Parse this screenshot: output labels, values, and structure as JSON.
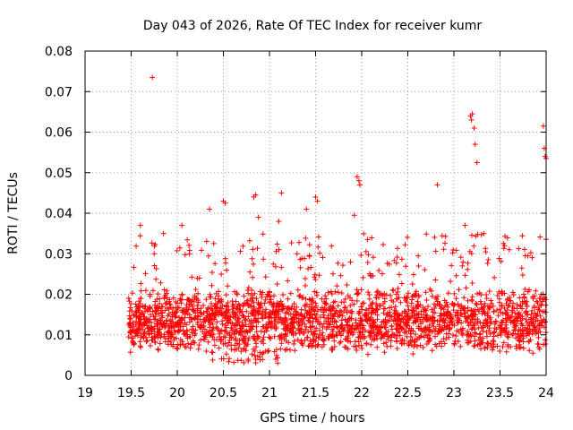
{
  "chart_data": {
    "type": "scatter",
    "title": "Day 043 of 2026, Rate Of TEC Index for receiver kumr",
    "xlabel": "GPS time / hours",
    "ylabel": "ROTI / TECUs",
    "xlim": [
      19,
      24
    ],
    "ylim": [
      0,
      0.08
    ],
    "x_ticks": [
      19,
      19.5,
      20,
      20.5,
      21,
      21.5,
      22,
      22.5,
      23,
      23.5,
      24
    ],
    "x_tick_labels": [
      "19",
      "19.5",
      "20",
      "20.5",
      "21",
      "21.5",
      "22",
      "22.5",
      "23",
      "23.5",
      "24"
    ],
    "y_ticks": [
      0,
      0.01,
      0.02,
      0.03,
      0.04,
      0.05,
      0.06,
      0.07,
      0.08
    ],
    "y_tick_labels": [
      "0",
      "0.01",
      "0.02",
      "0.03",
      "0.04",
      "0.05",
      "0.06",
      "0.07",
      "0.08"
    ],
    "grid": true,
    "marker": "+",
    "color": "#ff0000",
    "time_range": [
      19.47,
      24.0
    ],
    "band": [
      0.005,
      0.022
    ],
    "outliers": [
      [
        19.73,
        0.0735
      ],
      [
        20.83,
        0.044
      ],
      [
        20.85,
        0.0445
      ],
      [
        21.13,
        0.045
      ],
      [
        20.5,
        0.043
      ],
      [
        20.52,
        0.0425
      ],
      [
        21.5,
        0.044
      ],
      [
        21.52,
        0.043
      ],
      [
        21.95,
        0.049
      ],
      [
        21.97,
        0.048
      ],
      [
        21.98,
        0.047
      ],
      [
        22.82,
        0.047
      ],
      [
        23.18,
        0.064
      ],
      [
        23.19,
        0.063
      ],
      [
        23.2,
        0.0645
      ],
      [
        23.22,
        0.061
      ],
      [
        23.23,
        0.057
      ],
      [
        23.25,
        0.0525
      ],
      [
        23.97,
        0.0615
      ],
      [
        23.98,
        0.056
      ],
      [
        23.99,
        0.054
      ],
      [
        24.0,
        0.0535
      ],
      [
        19.6,
        0.037
      ],
      [
        19.75,
        0.03
      ],
      [
        19.85,
        0.035
      ],
      [
        20.05,
        0.037
      ],
      [
        20.35,
        0.041
      ],
      [
        20.88,
        0.039
      ],
      [
        21.1,
        0.038
      ],
      [
        21.4,
        0.041
      ],
      [
        21.92,
        0.0395
      ],
      [
        23.12,
        0.037
      ],
      [
        23.55,
        0.032
      ],
      [
        23.6,
        0.031
      ]
    ]
  }
}
